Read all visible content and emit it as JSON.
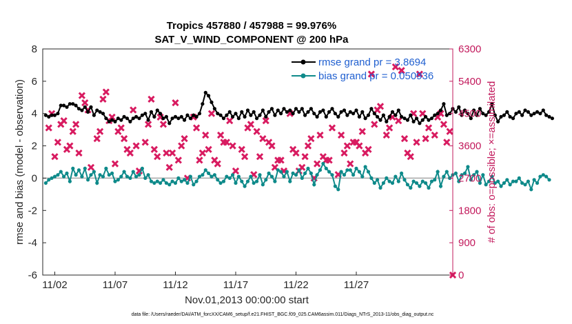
{
  "chart_data": {
    "type": "line",
    "title": "Tropics 457880 / 457988 = 99.976%",
    "subtitle": "SAT_V_WIND_COMPONENT @ 200 hPa",
    "xlabel": "Nov.01,2013 00:00:00 start",
    "ylabel": "rmse and bias (model - observation)",
    "y2label": "# of obs: o=possible; ×=assimilated",
    "footnote": "data file: /Users/raeder/DAI/ATM_forcXX/CAM6_setup/f.e21.FHIST_BGC.f09_025.CAM6assim.011/Diags_NTrS_2013-11/obs_diag_output.nc",
    "x_unit": "days since Nov.01,2013 00:00",
    "xlim": [
      0,
      34
    ],
    "xticks": [
      1,
      6,
      11,
      16,
      21,
      26
    ],
    "xtick_labels": [
      "11/02",
      "11/07",
      "11/12",
      "11/17",
      "11/22",
      "11/27"
    ],
    "ylim": [
      -6,
      8
    ],
    "yticks": [
      -6,
      -4,
      -2,
      0,
      2,
      4,
      6,
      8
    ],
    "y2lim": [
      0,
      6300
    ],
    "y2ticks": [
      0,
      900,
      1800,
      2700,
      3600,
      4500,
      5400,
      6300
    ],
    "grid": false,
    "legend_position": "top-right",
    "colors": {
      "rmse": "#000000",
      "bias": "#0e8a8a",
      "obs": "#d81b60",
      "zero_line": "#a6a6a6",
      "legend_text": "#1f5fd0",
      "right_axis": "#c2185b"
    },
    "series": [
      {
        "name": "rmse grand pr = 3.8694",
        "axis": "left",
        "x_start": 0.25,
        "x_step": 0.25,
        "values": [
          3.9,
          3.8,
          3.9,
          3.9,
          4.0,
          4.5,
          4.5,
          4.4,
          4.6,
          4.6,
          4.5,
          4.3,
          4.2,
          4.4,
          4.1,
          4.4,
          3.9,
          4.2,
          4.1,
          4.0,
          3.7,
          3.5,
          3.6,
          3.5,
          3.7,
          3.6,
          3.8,
          3.7,
          3.5,
          3.7,
          3.8,
          3.7,
          3.9,
          4.0,
          3.6,
          4.1,
          3.8,
          4.2,
          4.0,
          3.7,
          3.8,
          3.4,
          3.7,
          3.8,
          3.7,
          3.8,
          3.6,
          3.9,
          3.7,
          3.9,
          3.8,
          4.0,
          4.6,
          5.3,
          5.1,
          4.7,
          4.3,
          4.0,
          3.9,
          3.7,
          3.9,
          4.1,
          3.8,
          4.0,
          3.7,
          4.1,
          3.8,
          4.2,
          3.9,
          4.1,
          3.7,
          3.9,
          4.2,
          3.8,
          4.1,
          4.3,
          3.9,
          4.2,
          4.0,
          4.3,
          4.1,
          4.2,
          4.0,
          4.3,
          4.1,
          4.3,
          3.9,
          4.1,
          4.3,
          4.0,
          3.8,
          4.1,
          4.2,
          3.8,
          4.1,
          4.3,
          4.0,
          3.8,
          4.1,
          4.2,
          3.9,
          4.1,
          4.0,
          4.2,
          3.8,
          4.1,
          3.7,
          3.9,
          4.3,
          4.0,
          3.8,
          3.6,
          3.9,
          3.5,
          3.8,
          4.1,
          3.9,
          4.2,
          3.8,
          3.7,
          3.6,
          3.9,
          3.5,
          3.7,
          3.4,
          3.6,
          3.8,
          3.6,
          3.7,
          3.9,
          4.0,
          4.2,
          4.6,
          3.9,
          4.0,
          4.3,
          4.1,
          4.4,
          3.9,
          4.2,
          4.0,
          3.7,
          4.2,
          3.9,
          4.3,
          4.0,
          3.9,
          4.1,
          4.6,
          3.9,
          3.5,
          3.8,
          3.9,
          4.1,
          3.8,
          3.7,
          4.0,
          4.1,
          3.9,
          4.2,
          4.1,
          3.9,
          4.0,
          4.1,
          4.0,
          4.2,
          3.9,
          3.8,
          3.7
        ]
      },
      {
        "name": "bias grand pr = 0.050936",
        "axis": "left",
        "x_start": 0.25,
        "x_step": 0.25,
        "values": [
          -0.3,
          -0.1,
          0.0,
          0.1,
          0.2,
          0.4,
          0.1,
          0.3,
          -0.2,
          0.6,
          0.2,
          0.5,
          0.1,
          0.6,
          -0.1,
          0.2,
          0.4,
          -0.3,
          0.2,
          0.1,
          0.6,
          0.2,
          0.3,
          -0.2,
          -0.1,
          0.1,
          0.4,
          0.1,
          0.0,
          0.4,
          0.1,
          0.2,
          0.6,
          0.0,
          0.2,
          -0.2,
          -0.3,
          -0.2,
          -0.3,
          -0.1,
          -0.3,
          -0.4,
          -0.2,
          -0.3,
          0.0,
          -0.2,
          -0.1,
          -0.3,
          0.1,
          -0.4,
          -0.2,
          0.1,
          0.2,
          0.5,
          0.3,
          0.1,
          0.2,
          -0.1,
          -0.3,
          -0.2,
          0.1,
          0.0,
          0.2,
          -0.3,
          0.1,
          -0.2,
          -0.5,
          -0.2,
          0.1,
          -0.3,
          -0.2,
          0.2,
          -0.4,
          -0.1,
          0.3,
          0.1,
          -0.2,
          0.5,
          0.4,
          0.1,
          0.4,
          -0.2,
          0.3,
          0.2,
          0.5,
          0.0,
          0.3,
          0.6,
          0.3,
          -0.4,
          0.2,
          0.5,
          0.9,
          0.6,
          0.4,
          0.2,
          -0.5,
          -0.7,
          0.4,
          0.2,
          0.5,
          0.5,
          0.2,
          0.6,
          0.4,
          0.1,
          0.7,
          0.4,
          0.0,
          -0.3,
          -0.1,
          -0.6,
          -0.3,
          0.0,
          -0.2,
          -0.3,
          0.1,
          -0.2,
          0.3,
          -0.1,
          -0.4,
          -0.6,
          -0.2,
          -0.3,
          -0.5,
          -0.2,
          -0.3,
          -0.6,
          -0.2,
          -0.1,
          0.4,
          -0.5,
          0.1,
          0.4,
          0.0,
          0.2,
          0.3,
          -0.2,
          0.2,
          0.3,
          0.7,
          -0.1,
          0.2,
          0.4,
          -0.3,
          0.2,
          -0.4,
          -0.2,
          0.1,
          -0.3,
          -0.2,
          -0.5,
          -0.3,
          -0.1,
          -0.4,
          -0.2,
          -0.2,
          0.0,
          -0.3,
          -0.4,
          -0.2,
          -0.7,
          -0.1,
          -0.3,
          0.1,
          0.2,
          0.1,
          -0.1
        ]
      },
      {
        "name": "# of obs",
        "axis": "right",
        "marker": "x",
        "x": [
          0.5,
          1.0,
          1.5,
          2.0,
          2.5,
          3.0,
          3.5,
          4.0,
          4.5,
          5.0,
          5.5,
          6.0,
          6.5,
          7.0,
          7.5,
          8.0,
          8.5,
          9.0,
          9.5,
          10.0,
          10.5,
          11.0,
          11.5,
          12.0,
          12.5,
          13.0,
          13.5,
          14.0,
          14.5,
          15.0,
          15.5,
          16.0,
          16.5,
          17.0,
          17.5,
          18.0,
          18.5,
          19.0,
          19.5,
          20.0,
          20.5,
          21.0,
          21.5,
          22.0,
          22.5,
          23.0,
          23.5,
          24.0,
          24.5,
          25.0,
          25.5,
          26.0,
          26.5,
          27.0,
          27.5,
          28.0,
          28.5,
          29.0,
          29.5,
          30.0,
          30.5,
          31.0,
          31.5,
          32.0,
          32.5,
          33.0,
          33.25,
          33.5,
          33.75,
          34.0,
          0.75,
          1.75,
          2.75,
          3.75,
          4.75,
          5.75,
          6.75,
          7.75,
          8.75,
          9.75,
          10.75,
          11.75,
          12.75,
          13.75,
          14.75,
          15.75,
          16.75,
          17.75,
          18.75,
          19.75,
          20.75,
          21.75,
          22.75,
          23.75,
          24.75,
          25.75,
          26.75,
          27.75,
          28.75,
          29.75,
          30.75,
          31.75,
          32.75,
          1.25,
          3.25,
          5.25,
          7.25,
          9.25,
          11.25,
          13.25,
          15.25,
          17.25,
          19.25,
          21.25,
          23.25,
          25.25,
          27.25,
          29.25,
          31.25,
          2.25,
          6.25,
          10.25,
          14.25,
          18.25,
          22.25,
          26.25,
          30.25
        ],
        "values": [
          4100,
          3300,
          4200,
          3500,
          4000,
          3400,
          4800,
          3000,
          3800,
          4900,
          4300,
          3100,
          4100,
          3500,
          4600,
          2900,
          3700,
          4900,
          3300,
          4200,
          3000,
          4800,
          3600,
          2700,
          4400,
          3200,
          3900,
          4500,
          3100,
          3700,
          4300,
          2900,
          3500,
          4100,
          2800,
          3300,
          4300,
          3600,
          3200,
          2900,
          4500,
          3400,
          3000,
          3600,
          2700,
          3900,
          3200,
          4100,
          2800,
          3400,
          3100,
          3700,
          4000,
          3500,
          4200,
          4700,
          3900,
          4400,
          4300,
          3800,
          3300,
          3700,
          4500,
          4100,
          3900,
          4500,
          4200,
          3700,
          4000,
          0,
          4500,
          4300,
          4200,
          4600,
          4000,
          4400,
          3800,
          3600,
          4200,
          4400,
          3400,
          3800,
          4100,
          3500,
          3900,
          3600,
          3300,
          4000,
          3700,
          3200,
          3500,
          3300,
          3100,
          3200,
          3900,
          3700,
          3400,
          4600,
          4100,
          5700,
          4500,
          3800,
          4400,
          3700,
          5000,
          5100,
          3400,
          3500,
          3200,
          3400,
          3700,
          4200,
          3000,
          2900,
          3300,
          3600,
          5600,
          5800,
          5600,
          3600,
          4000,
          3400,
          3200,
          3800,
          3800,
          3600,
          3400
        ]
      }
    ]
  }
}
